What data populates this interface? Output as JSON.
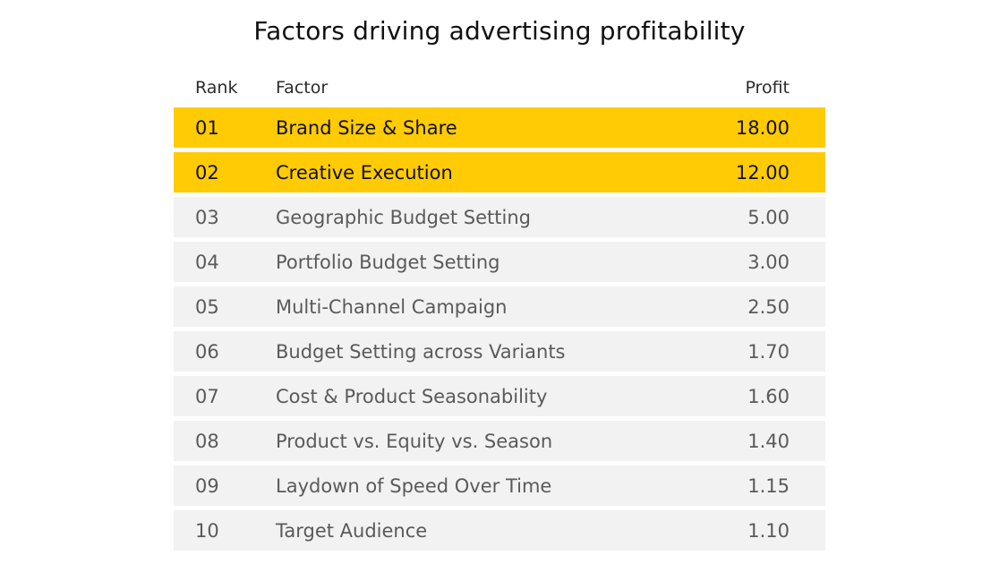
{
  "chart_data": {
    "type": "table",
    "title": "Factors driving advertising profitability",
    "columns": [
      "Rank",
      "Factor",
      "Profit"
    ],
    "highlight_color": "#FFCB05",
    "rows": [
      {
        "rank": "01",
        "factor": "Brand Size & Share",
        "profit": "18.00",
        "value": 18.0,
        "highlight": true
      },
      {
        "rank": "02",
        "factor": "Creative Execution",
        "profit": "12.00",
        "value": 12.0,
        "highlight": true
      },
      {
        "rank": "03",
        "factor": "Geographic Budget Setting",
        "profit": "5.00",
        "value": 5.0,
        "highlight": false
      },
      {
        "rank": "04",
        "factor": "Portfolio Budget Setting",
        "profit": "3.00",
        "value": 3.0,
        "highlight": false
      },
      {
        "rank": "05",
        "factor": "Multi-Channel Campaign",
        "profit": "2.50",
        "value": 2.5,
        "highlight": false
      },
      {
        "rank": "06",
        "factor": "Budget Setting across Variants",
        "profit": "1.70",
        "value": 1.7,
        "highlight": false
      },
      {
        "rank": "07",
        "factor": "Cost & Product Seasonability",
        "profit": "1.60",
        "value": 1.6,
        "highlight": false
      },
      {
        "rank": "08",
        "factor": "Product vs. Equity vs. Season",
        "profit": "1.40",
        "value": 1.4,
        "highlight": false
      },
      {
        "rank": "09",
        "factor": "Laydown of Speed Over Time",
        "profit": "1.15",
        "value": 1.15,
        "highlight": false
      },
      {
        "rank": "10",
        "factor": "Target Audience",
        "profit": "1.10",
        "value": 1.1,
        "highlight": false
      }
    ]
  }
}
